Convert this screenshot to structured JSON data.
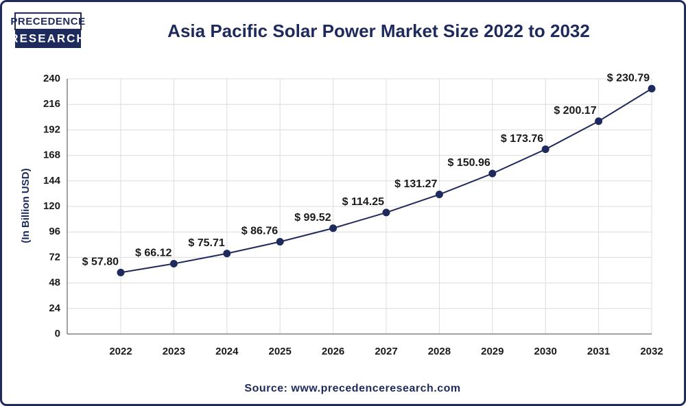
{
  "logo": {
    "line1": "PRECEDENCE",
    "line2": "RESEARCH"
  },
  "chart_data": {
    "type": "line",
    "title": "Asia Pacific Solar Power Market Size 2022 to 2032",
    "y_label": "(In Billion USD)",
    "source": "Source: www.precedenceresearch.com",
    "categories": [
      "2022",
      "2023",
      "2024",
      "2025",
      "2026",
      "2027",
      "2028",
      "2029",
      "2030",
      "2031",
      "2032"
    ],
    "values": [
      57.8,
      66.12,
      75.71,
      86.76,
      99.52,
      114.25,
      131.27,
      150.96,
      173.76,
      200.17,
      230.79
    ],
    "value_labels": [
      "$ 57.80",
      "$ 66.12",
      "$ 75.71",
      "$ 86.76",
      "$ 99.52",
      "$ 114.25",
      "$ 131.27",
      "$ 150.96",
      "$ 173.76",
      "$ 200.17",
      "$ 230.79"
    ],
    "color": "#1f2a5c",
    "ylim": [
      0,
      240
    ],
    "yticks": [
      0,
      24,
      48,
      72,
      96,
      120,
      144,
      168,
      192,
      216,
      240
    ],
    "grid": true
  }
}
